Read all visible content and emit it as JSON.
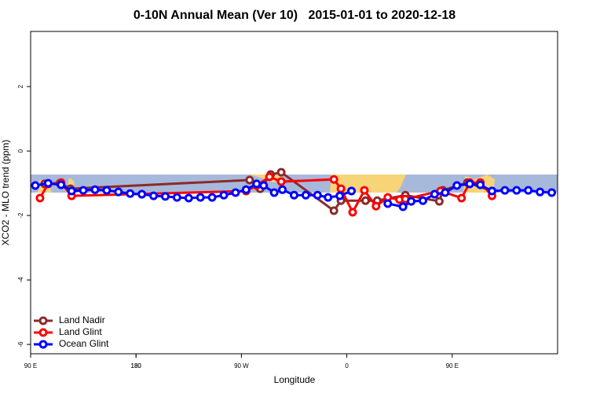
{
  "chart_data": {
    "type": "line",
    "title": "0-10N Annual Mean (Ver 10)   2015-01-01 to 2020-12-18",
    "x_label": "Longitude",
    "y_label": "XCO2 - MLO trend (ppm)",
    "xlim": [
      90,
      540
    ],
    "xticks": [
      {
        "value": 90,
        "label": "90 E"
      },
      180,
      {
        "value": 270,
        "label": "90 W"
      },
      {
        "value": 360,
        "label": "0"
      },
      {
        "value": 450,
        "label": "90 E"
      },
      180.0001
    ],
    "ylim": [
      -6.29,
      3.71
    ],
    "yticks": [
      2,
      0,
      -2,
      -4,
      -6
    ],
    "legend": "bottom-left",
    "series": [
      {
        "name": "Land Nadir",
        "color": "#8b2a2a",
        "x": [
          102,
          115,
          124,
          277,
          286,
          295,
          304,
          349,
          355,
          376,
          386,
          410,
          439,
          442,
          463,
          484
        ],
        "values": [
          -1.02,
          -1.0,
          -1.17,
          -0.9,
          -1.17,
          -0.73,
          -0.66,
          -1.85,
          -1.54,
          -1.54,
          -1.54,
          -1.37,
          -1.56,
          -1.22,
          -0.98,
          -1.24
        ]
      },
      {
        "name": "Land Glint",
        "color": "#ff0000",
        "x": [
          98,
          105,
          116,
          125,
          274,
          283,
          294,
          304,
          349,
          355,
          365,
          375,
          385,
          395,
          405,
          410,
          440,
          458,
          465,
          474,
          484
        ],
        "values": [
          -1.46,
          -1.02,
          -0.98,
          -1.39,
          -1.24,
          -1.07,
          -0.8,
          -0.95,
          -0.88,
          -1.17,
          -1.9,
          -1.22,
          -1.71,
          -1.44,
          -1.51,
          -1.49,
          -1.24,
          -1.46,
          -0.98,
          -0.98,
          -1.39
        ]
      },
      {
        "name": "Ocean Glint",
        "color": "#0000ff",
        "x": [
          94,
          105,
          116,
          125,
          135,
          145,
          155,
          165,
          175,
          185,
          195,
          205,
          215,
          225,
          235,
          245,
          255,
          265,
          274,
          283,
          289,
          298,
          305,
          315,
          325,
          335,
          344,
          354,
          364,
          null,
          395,
          408,
          415,
          425,
          435,
          444,
          454,
          465,
          474,
          484,
          495,
          505,
          515,
          525,
          535
        ],
        "values": [
          -1.07,
          -1.0,
          -1.05,
          -1.24,
          -1.22,
          -1.2,
          -1.22,
          -1.27,
          -1.32,
          -1.34,
          -1.39,
          -1.41,
          -1.44,
          -1.46,
          -1.44,
          -1.44,
          -1.37,
          -1.29,
          -1.2,
          -1.02,
          -1.07,
          -1.29,
          -1.2,
          -1.37,
          -1.37,
          -1.37,
          -1.44,
          -1.39,
          -1.24,
          null,
          -1.63,
          -1.73,
          -1.56,
          -1.54,
          -1.34,
          -1.29,
          -1.07,
          -1.02,
          -1.05,
          -1.24,
          -1.22,
          -1.22,
          -1.22,
          -1.27,
          -1.29
        ]
      }
    ]
  }
}
